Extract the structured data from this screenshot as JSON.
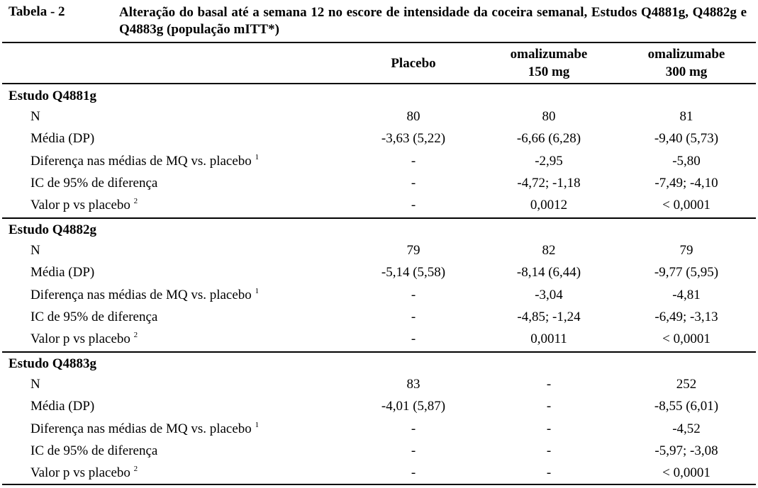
{
  "caption": {
    "label": "Tabela - 2",
    "title": "Alteração do basal até a semana 12 no escore de intensidade da coceira semanal, Estudos Q4881g, Q4882g e Q4883g (população mITT*)"
  },
  "table": {
    "columns": [
      [
        "Placebo"
      ],
      [
        "omalizumabe",
        "150 mg"
      ],
      [
        "omalizumabe",
        "300 mg"
      ]
    ],
    "sections": [
      {
        "title": "Estudo Q4881g",
        "rows": [
          {
            "label": "N",
            "cells": [
              "80",
              "80",
              "81"
            ]
          },
          {
            "label": "Média (DP)",
            "cells": [
              "-3,63 (5,22)",
              "-6,66 (6,28)",
              "-9,40 (5,73)"
            ]
          },
          {
            "label": "Diferença nas médias de MQ vs. placebo",
            "note": "1",
            "cells": [
              "-",
              "-2,95",
              "-5,80"
            ]
          },
          {
            "label": "IC de 95% de diferença",
            "cells": [
              "-",
              "-4,72; -1,18",
              "-7,49; -4,10"
            ]
          },
          {
            "label": "Valor p vs placebo",
            "note": "2",
            "cells": [
              "-",
              "0,0012",
              "< 0,0001"
            ]
          }
        ]
      },
      {
        "title": "Estudo Q4882g",
        "rows": [
          {
            "label": "N",
            "cells": [
              "79",
              "82",
              "79"
            ]
          },
          {
            "label": "Média (DP)",
            "cells": [
              "-5,14 (5,58)",
              "-8,14 (6,44)",
              "-9,77 (5,95)"
            ]
          },
          {
            "label": "Diferença nas médias de MQ vs. placebo",
            "note": "1",
            "cells": [
              "-",
              "-3,04",
              "-4,81"
            ]
          },
          {
            "label": "IC de 95% de diferença",
            "cells": [
              "-",
              "-4,85; -1,24",
              "-6,49; -3,13"
            ]
          },
          {
            "label": "Valor p vs placebo",
            "note": "2",
            "cells": [
              "-",
              "0,0011",
              "< 0,0001"
            ]
          }
        ]
      },
      {
        "title": "Estudo Q4883g",
        "rows": [
          {
            "label": "N",
            "cells": [
              "83",
              "-",
              "252"
            ]
          },
          {
            "label": "Média (DP)",
            "cells": [
              "-4,01 (5,87)",
              "-",
              "-8,55 (6,01)"
            ]
          },
          {
            "label": "Diferença nas médias de MQ vs. placebo",
            "note": "1",
            "cells": [
              "-",
              "-",
              "-4,52"
            ]
          },
          {
            "label": "IC de 95% de diferença",
            "cells": [
              "-",
              "-",
              "-5,97; -3,08"
            ]
          },
          {
            "label": "Valor p vs placebo",
            "note": "2",
            "cells": [
              "-",
              "-",
              "< 0,0001"
            ]
          }
        ]
      }
    ]
  }
}
